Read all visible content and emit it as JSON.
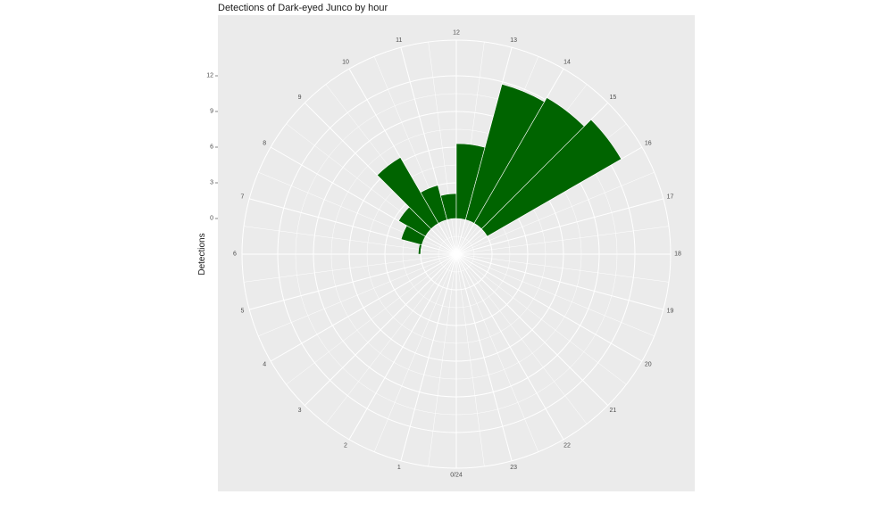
{
  "chart_data": {
    "type": "bar",
    "coord": "polar",
    "title": "Detections of Dark-eyed Junco by hour",
    "xlabel": "",
    "ylabel": "Detections",
    "categories": [
      "0/24",
      "1",
      "2",
      "3",
      "4",
      "5",
      "6",
      "7",
      "8",
      "9",
      "10",
      "11",
      "12",
      "13",
      "14",
      "15",
      "16",
      "17",
      "18",
      "19",
      "20",
      "21",
      "22",
      "23"
    ],
    "values": [
      0,
      0,
      0,
      0,
      0,
      0,
      0.2,
      1.8,
      2.6,
      6.4,
      3.0,
      2.1,
      6.3,
      11.8,
      12.2,
      13.0,
      0,
      0,
      0,
      0,
      0,
      0,
      0,
      0
    ],
    "yticks": [
      "0",
      "3",
      "6",
      "9",
      "12"
    ],
    "ylim": [
      -3,
      15
    ],
    "grid": true,
    "legend": "none",
    "colors": {
      "bar": "#006400",
      "panel": "#ebebeb",
      "grid": "#ffffff",
      "text": "#4d4d4d"
    }
  }
}
